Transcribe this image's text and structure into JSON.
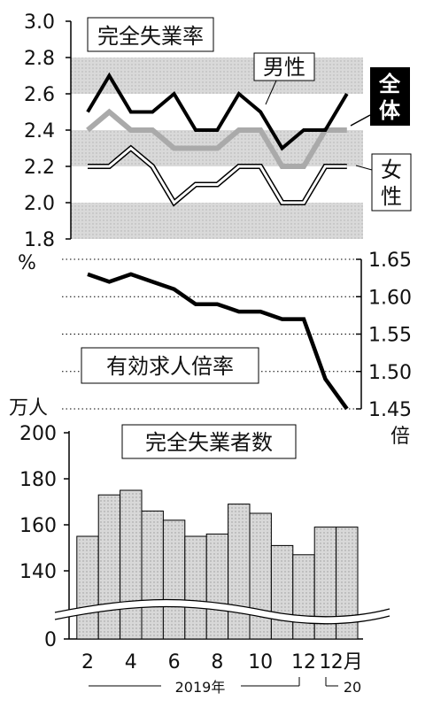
{
  "chart_data": [
    {
      "type": "line",
      "title": "完全失業率",
      "unit": "%",
      "ylim": [
        1.8,
        3.0
      ],
      "yticks": [
        "3.0",
        "2.8",
        "2.6",
        "2.4",
        "2.2",
        "2.0",
        "1.8"
      ],
      "x": [
        "2019-02",
        "2019-03",
        "2019-04",
        "2019-05",
        "2019-06",
        "2019-07",
        "2019-08",
        "2019-09",
        "2019-10",
        "2019-11",
        "2019-12",
        "2020-01",
        "2020-02"
      ],
      "series": [
        {
          "name": "全体",
          "values": [
            2.5,
            2.7,
            2.5,
            2.5,
            2.6,
            2.4,
            2.4,
            2.6,
            2.5,
            2.3,
            2.4,
            2.4,
            2.6
          ],
          "color": "#000000"
        },
        {
          "name": "男性",
          "values": [
            2.4,
            2.5,
            2.4,
            2.4,
            2.3,
            2.3,
            2.3,
            2.4,
            2.4,
            2.2,
            2.2,
            2.4,
            2.4
          ],
          "color": "#aaaaaa"
        },
        {
          "name": "女性",
          "values": [
            2.2,
            2.2,
            2.3,
            2.2,
            2.0,
            2.1,
            2.1,
            2.2,
            2.2,
            2.0,
            2.0,
            2.2,
            2.2
          ],
          "color": "#ffffff"
        }
      ]
    },
    {
      "type": "line",
      "title": "有効求人倍率",
      "unit": "倍",
      "ylim": [
        1.45,
        1.65
      ],
      "yticks": [
        "1.65",
        "1.60",
        "1.55",
        "1.50",
        "1.45"
      ],
      "x": [
        "2019-02",
        "2019-03",
        "2019-04",
        "2019-05",
        "2019-06",
        "2019-07",
        "2019-08",
        "2019-09",
        "2019-10",
        "2019-11",
        "2019-12",
        "2020-01",
        "2020-02"
      ],
      "series": [
        {
          "name": "有効求人倍率",
          "values": [
            1.63,
            1.62,
            1.63,
            1.62,
            1.61,
            1.59,
            1.59,
            1.58,
            1.58,
            1.57,
            1.57,
            1.49,
            1.45
          ],
          "color": "#000000"
        }
      ]
    },
    {
      "type": "bar",
      "title": "完全失業者数",
      "unit": "万人",
      "yticks": [
        "200",
        "180",
        "160",
        "140",
        "0"
      ],
      "categories": [
        "2019-02",
        "2019-03",
        "2019-04",
        "2019-05",
        "2019-06",
        "2019-07",
        "2019-08",
        "2019-09",
        "2019-10",
        "2019-11",
        "2019-12",
        "2020-01",
        "2020-02"
      ],
      "values": [
        155,
        173,
        175,
        166,
        162,
        155,
        156,
        169,
        165,
        151,
        147,
        159,
        159
      ]
    }
  ],
  "xaxis": {
    "ticks": [
      "2",
      "4",
      "6",
      "8",
      "10",
      "12",
      "1",
      "2月"
    ],
    "year_2019": "2019年",
    "year_2020": "20"
  }
}
